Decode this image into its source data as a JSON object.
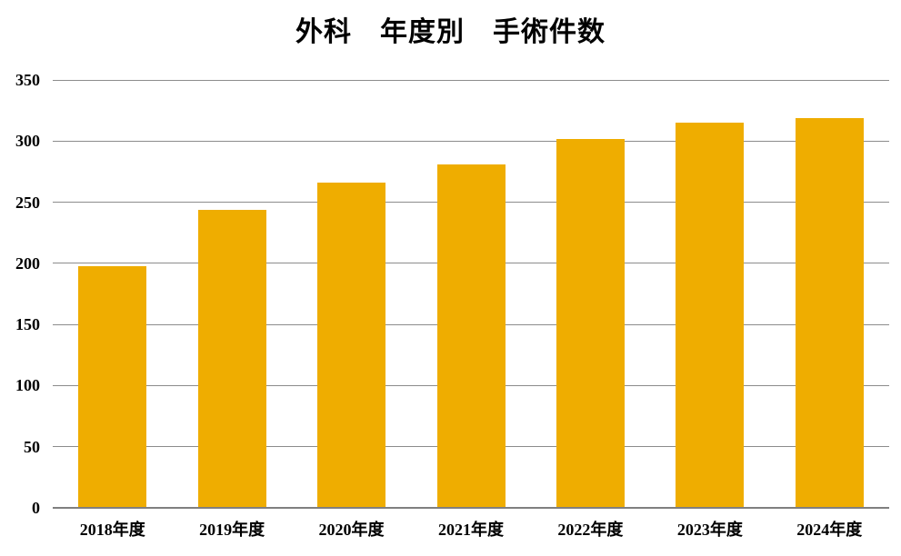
{
  "page": {
    "background": "#FFFFFF"
  },
  "chart_data": {
    "type": "bar",
    "title": "外科　年度別　手術件数",
    "categories": [
      "2018年度",
      "2019年度",
      "2020年度",
      "2021年度",
      "2022年度",
      "2023年度",
      "2024年度"
    ],
    "values": [
      198,
      244,
      266,
      281,
      302,
      315,
      319
    ],
    "xlabel": "",
    "ylabel": "",
    "ylim": [
      0,
      350
    ],
    "yticks": [
      0,
      50,
      100,
      150,
      200,
      250,
      300,
      350
    ],
    "grid": "horizontal",
    "legend_position": "none",
    "bar_color": "#EFAD00",
    "gridline_color": "#8C8C8C",
    "axis_line_color": "#7F7F7F",
    "text_color": "#000000"
  }
}
